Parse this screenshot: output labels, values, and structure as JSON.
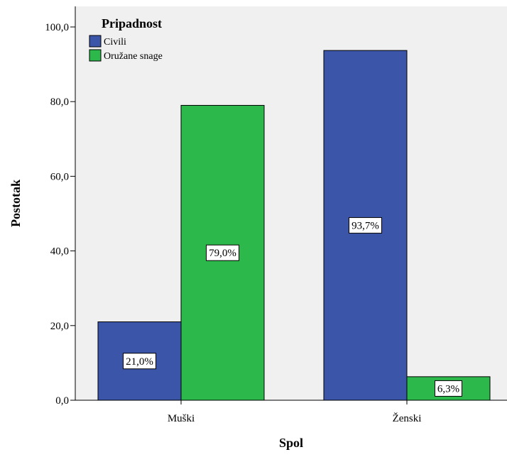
{
  "chart_data": {
    "type": "bar",
    "categories": [
      "Muški",
      "Ženski"
    ],
    "series": [
      {
        "name": "Civili",
        "values": [
          21.0,
          93.7
        ],
        "labels": [
          "21,0%",
          "93,7%"
        ],
        "color": "#3b56a8"
      },
      {
        "name": "Oružane snage",
        "values": [
          79.0,
          6.3
        ],
        "labels": [
          "79,0%",
          "6,3%"
        ],
        "color": "#2db84b"
      }
    ],
    "xlabel": "Spol",
    "ylabel": "Postotak",
    "ylim": [
      0,
      100
    ],
    "yticks": [
      "0,0",
      "20,0",
      "40,0",
      "60,0",
      "80,0",
      "100,0"
    ],
    "legend": {
      "title": "Pripadnost",
      "position": "top-left"
    },
    "plot_background": "#f0f0f0",
    "grid": false
  }
}
